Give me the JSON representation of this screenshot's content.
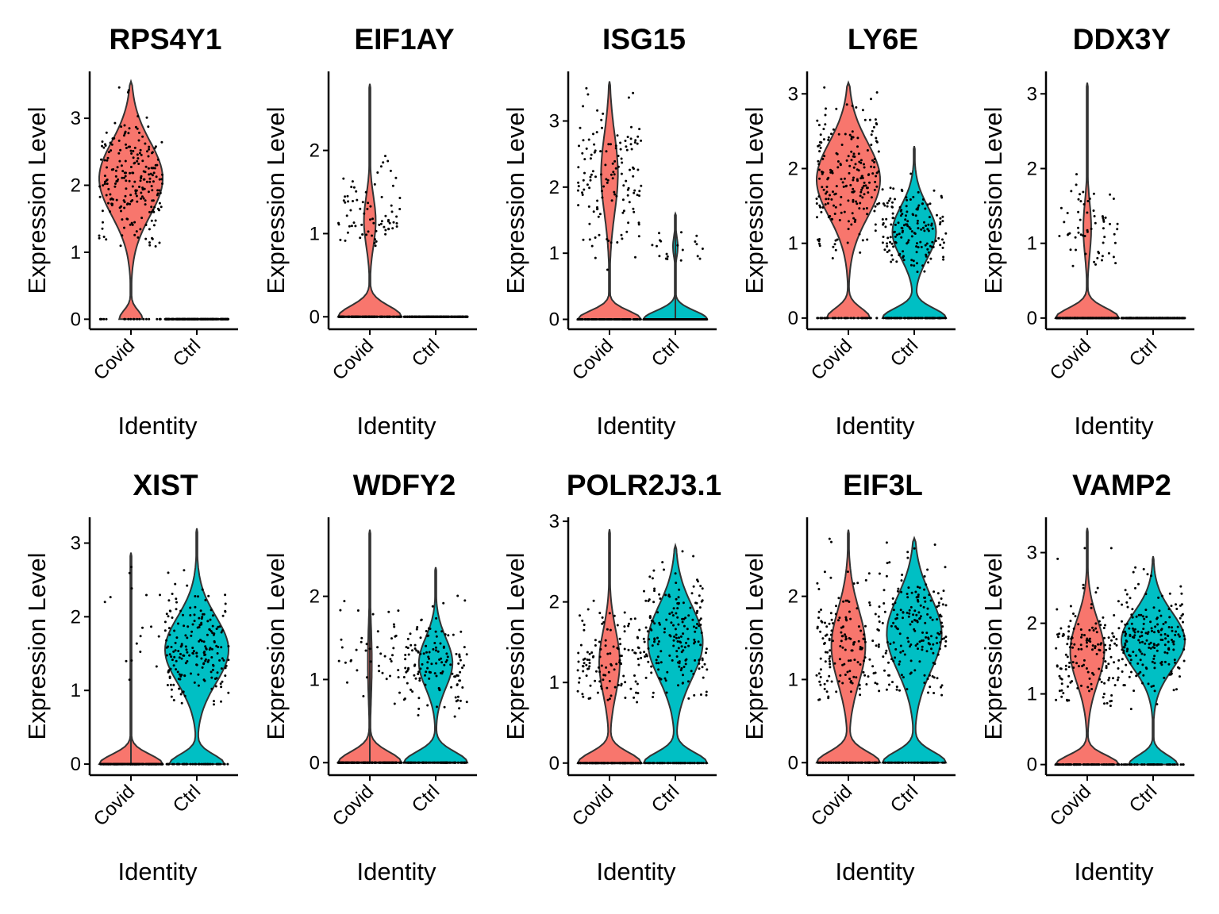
{
  "colors": {
    "Covid": "#F8766D",
    "Ctrl": "#00BFC4"
  },
  "chart_data": [
    {
      "type": "violin",
      "title": "RPS4Y1",
      "xlabel": "Identity",
      "ylabel": "Expression Level",
      "categories": [
        "Covid",
        "Ctrl"
      ],
      "yticks": [
        0,
        1,
        2,
        3
      ],
      "ylim": [
        -0.15,
        3.7
      ],
      "series": [
        {
          "category": "Covid",
          "max": 3.55,
          "zero_fraction": 0.08,
          "dense_center": 2.1,
          "dense_spread": 0.55,
          "min_nonzero": 1.0
        },
        {
          "category": "Ctrl",
          "max": 0,
          "zero_fraction": 1.0
        }
      ]
    },
    {
      "type": "violin",
      "title": "EIF1AY",
      "xlabel": "Identity",
      "ylabel": "Expression Level",
      "categories": [
        "Covid",
        "Ctrl"
      ],
      "yticks": [
        0,
        1,
        2
      ],
      "ylim": [
        -0.15,
        2.95
      ],
      "series": [
        {
          "category": "Covid",
          "max": 2.8,
          "zero_fraction": 0.7,
          "dense_center": 1.15,
          "dense_spread": 0.3,
          "min_nonzero": 0.85
        },
        {
          "category": "Ctrl",
          "max": 0,
          "zero_fraction": 1.0
        }
      ]
    },
    {
      "type": "violin",
      "title": "ISG15",
      "xlabel": "Identity",
      "ylabel": "Expression Level",
      "categories": [
        "Covid",
        "Ctrl"
      ],
      "yticks": [
        0,
        1,
        2,
        3
      ],
      "ylim": [
        -0.15,
        3.75
      ],
      "series": [
        {
          "category": "Covid",
          "max": 3.6,
          "zero_fraction": 0.45,
          "dense_center": 2.2,
          "dense_spread": 0.6,
          "min_nonzero": 0.6
        },
        {
          "category": "Ctrl",
          "max": 1.6,
          "zero_fraction": 0.92,
          "dense_center": 1.1,
          "dense_spread": 0.15,
          "min_nonzero": 0.7
        }
      ]
    },
    {
      "type": "violin",
      "title": "LY6E",
      "xlabel": "Identity",
      "ylabel": "Expression Level",
      "categories": [
        "Covid",
        "Ctrl"
      ],
      "yticks": [
        0,
        1,
        2,
        3
      ],
      "ylim": [
        -0.15,
        3.3
      ],
      "series": [
        {
          "category": "Covid",
          "max": 3.15,
          "zero_fraction": 0.15,
          "dense_center": 1.85,
          "dense_spread": 0.5,
          "min_nonzero": 0.8
        },
        {
          "category": "Ctrl",
          "max": 2.3,
          "zero_fraction": 0.35,
          "dense_center": 1.15,
          "dense_spread": 0.35,
          "min_nonzero": 0.6
        }
      ]
    },
    {
      "type": "violin",
      "title": "DDX3Y",
      "xlabel": "Identity",
      "ylabel": "Expression Level",
      "categories": [
        "Covid",
        "Ctrl"
      ],
      "yticks": [
        0,
        1,
        2,
        3
      ],
      "ylim": [
        -0.15,
        3.3
      ],
      "series": [
        {
          "category": "Covid",
          "max": 3.15,
          "zero_fraction": 0.75,
          "dense_center": 1.2,
          "dense_spread": 0.35,
          "min_nonzero": 0.65
        },
        {
          "category": "Ctrl",
          "max": 0,
          "zero_fraction": 1.0
        }
      ]
    },
    {
      "type": "violin",
      "title": "XIST",
      "xlabel": "Identity",
      "ylabel": "Expression Level",
      "categories": [
        "Covid",
        "Ctrl"
      ],
      "yticks": [
        0,
        1,
        2,
        3
      ],
      "ylim": [
        -0.15,
        3.35
      ],
      "series": [
        {
          "category": "Covid",
          "max": 2.87,
          "zero_fraction": 0.93,
          "dense_center": 1.7,
          "dense_spread": 0.6,
          "min_nonzero": 1.05
        },
        {
          "category": "Ctrl",
          "max": 3.2,
          "zero_fraction": 0.2,
          "dense_center": 1.55,
          "dense_spread": 0.45,
          "min_nonzero": 0.8
        }
      ]
    },
    {
      "type": "violin",
      "title": "WDFY2",
      "xlabel": "Identity",
      "ylabel": "Expression Level",
      "categories": [
        "Covid",
        "Ctrl"
      ],
      "yticks": [
        0,
        1,
        2
      ],
      "ylim": [
        -0.15,
        2.95
      ],
      "series": [
        {
          "category": "Covid",
          "max": 2.8,
          "zero_fraction": 0.82,
          "dense_center": 1.2,
          "dense_spread": 0.45,
          "min_nonzero": 0.7
        },
        {
          "category": "Ctrl",
          "max": 2.35,
          "zero_fraction": 0.45,
          "dense_center": 1.2,
          "dense_spread": 0.3,
          "min_nonzero": 0.55
        }
      ]
    },
    {
      "type": "violin",
      "title": "POLR2J3.1",
      "xlabel": "Identity",
      "ylabel": "Expression Level",
      "categories": [
        "Covid",
        "Ctrl"
      ],
      "yticks": [
        0,
        1,
        2,
        3
      ],
      "ylim": [
        -0.15,
        3.05
      ],
      "series": [
        {
          "category": "Covid",
          "max": 2.9,
          "zero_fraction": 0.5,
          "dense_center": 1.25,
          "dense_spread": 0.4,
          "min_nonzero": 0.75
        },
        {
          "category": "Ctrl",
          "max": 2.7,
          "zero_fraction": 0.25,
          "dense_center": 1.5,
          "dense_spread": 0.45,
          "min_nonzero": 0.8
        }
      ]
    },
    {
      "type": "violin",
      "title": "EIF3L",
      "xlabel": "Identity",
      "ylabel": "Expression Level",
      "categories": [
        "Covid",
        "Ctrl"
      ],
      "yticks": [
        0,
        1,
        2
      ],
      "ylim": [
        -0.15,
        2.95
      ],
      "series": [
        {
          "category": "Covid",
          "max": 2.8,
          "zero_fraction": 0.35,
          "dense_center": 1.4,
          "dense_spread": 0.45,
          "min_nonzero": 0.75
        },
        {
          "category": "Ctrl",
          "max": 2.7,
          "zero_fraction": 0.25,
          "dense_center": 1.55,
          "dense_spread": 0.45,
          "min_nonzero": 0.8
        }
      ]
    },
    {
      "type": "violin",
      "title": "VAMP2",
      "xlabel": "Identity",
      "ylabel": "Expression Level",
      "categories": [
        "Covid",
        "Ctrl"
      ],
      "yticks": [
        0,
        1,
        2,
        3
      ],
      "ylim": [
        -0.15,
        3.5
      ],
      "series": [
        {
          "category": "Covid",
          "max": 3.35,
          "zero_fraction": 0.35,
          "dense_center": 1.6,
          "dense_spread": 0.45,
          "min_nonzero": 0.75
        },
        {
          "category": "Ctrl",
          "max": 2.95,
          "zero_fraction": 0.2,
          "dense_center": 1.75,
          "dense_spread": 0.4,
          "min_nonzero": 0.55
        }
      ]
    }
  ]
}
